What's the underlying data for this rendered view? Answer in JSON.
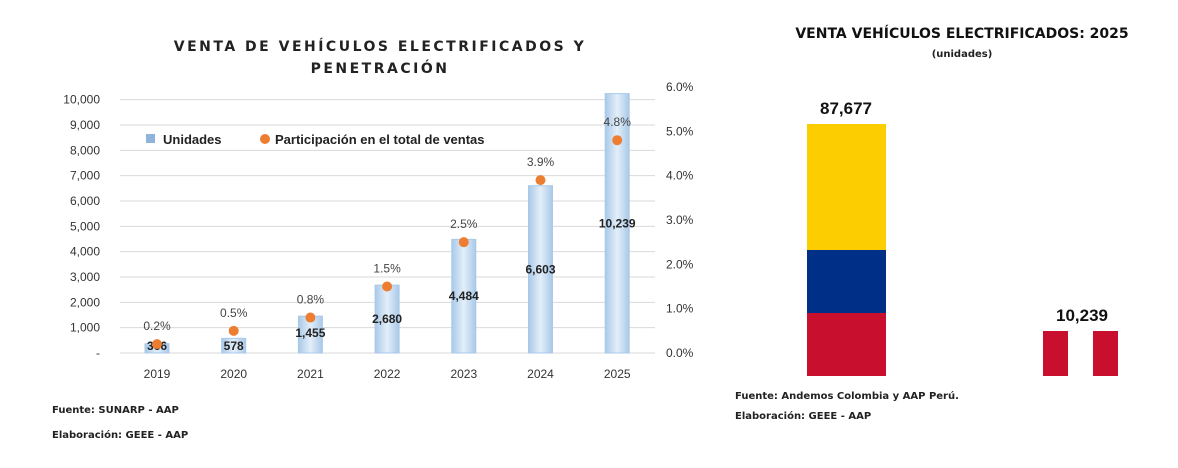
{
  "chart_data": [
    {
      "type": "bar+scatter",
      "title": "VENTA DE VEHÍCULOS ELECTRIFICADOS Y PENETRACIÓN",
      "categories": [
        "2019",
        "2020",
        "2021",
        "2022",
        "2023",
        "2024",
        "2025"
      ],
      "series": [
        {
          "name": "Unidades",
          "type": "bar",
          "axis": "left",
          "values": [
            366,
            578,
            1455,
            2680,
            4484,
            6603,
            10239
          ],
          "labels": [
            "366",
            "578",
            "1,455",
            "2,680",
            "4,484",
            "6,603",
            "10,239"
          ],
          "color": "#bcd6ee"
        },
        {
          "name": "Participación en el total de ventas",
          "type": "scatter",
          "axis": "right",
          "values": [
            0.2,
            0.5,
            0.8,
            1.5,
            2.5,
            3.9,
            4.8
          ],
          "labels": [
            "0.2%",
            "0.5%",
            "0.8%",
            "1.5%",
            "2.5%",
            "3.9%",
            "4.8%"
          ],
          "color": "#ed7d31"
        }
      ],
      "ylim_left": [
        0,
        10500
      ],
      "ylim_right": [
        0,
        6
      ],
      "left_ticks": [
        "-",
        "1,000",
        "2,000",
        "3,000",
        "4,000",
        "5,000",
        "6,000",
        "7,000",
        "8,000",
        "9,000",
        "10,000"
      ],
      "right_ticks": [
        "0.0%",
        "1.0%",
        "2.0%",
        "3.0%",
        "4.0%",
        "5.0%",
        "6.0%"
      ],
      "grid": true,
      "legend": "top-left",
      "source": "Fuente: SUNARP - AAP",
      "credit": "Elaboración: GEEE - AAP"
    },
    {
      "type": "bar",
      "title": "VENTA VEHÍCULOS ELECTRIFICADOS: 2025",
      "subtitle": "(unidades)",
      "categories": [
        "Colombia",
        "Perú"
      ],
      "values": [
        87677,
        10239
      ],
      "labels": [
        "87,677",
        "10,239"
      ],
      "colors": {
        "yellow": "#fccd00",
        "blue": "#002f87",
        "red": "#c8102e",
        "white": "#ffffff"
      },
      "source": "Fuente: Andemos Colombia y AAP Perú.",
      "credit": "Elaboración: GEEE - AAP"
    }
  ]
}
